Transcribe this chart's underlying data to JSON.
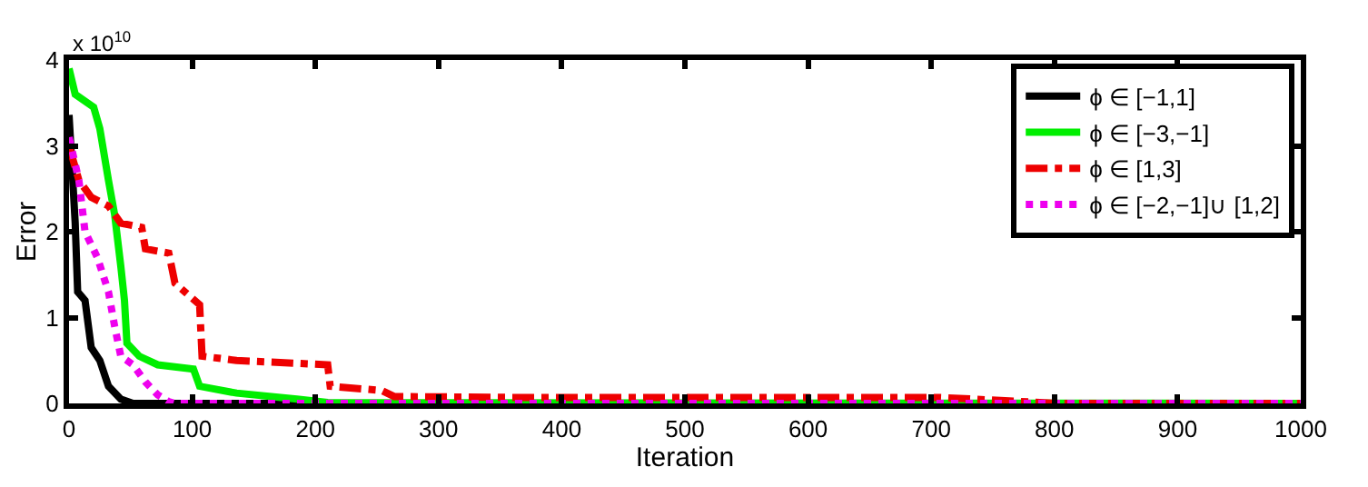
{
  "chart_data": {
    "type": "line",
    "xlabel": "Iteration",
    "ylabel": "Error",
    "annotations": [
      "x 10$^{10}$"
    ],
    "xlim": [
      0,
      1000
    ],
    "xticks": [
      0,
      100,
      200,
      300,
      400,
      500,
      600,
      700,
      800,
      900,
      1000
    ],
    "ylim": [
      0,
      4
    ],
    "yticks": [
      0,
      1,
      2,
      3,
      4
    ],
    "grid": false,
    "legend": "top right",
    "marker": "none",
    "series": [
      {
        "name": "ϕ ∈ [−1,1]",
        "color": "#000000",
        "line_style": "solid",
        "x": [
          0,
          5,
          7,
          13,
          18,
          25,
          32,
          42,
          52,
          1000
        ],
        "values": [
          3.36,
          2.1,
          1.3,
          1.2,
          0.65,
          0.5,
          0.2,
          0.05,
          0,
          0
        ]
      },
      {
        "name": "ϕ ∈ [−3,−1]",
        "color": "#00ee00",
        "line_style": "solid",
        "x": [
          0,
          5,
          20,
          25,
          32,
          37,
          42,
          45,
          47,
          57,
          72,
          101,
          106,
          136,
          185,
          210,
          1000
        ],
        "values": [
          3.9,
          3.6,
          3.45,
          3.2,
          2.6,
          2.2,
          1.6,
          1.2,
          0.7,
          0.55,
          0.45,
          0.4,
          0.2,
          0.12,
          0.05,
          0.01,
          0
        ]
      },
      {
        "name": "ϕ ∈ [1,3]",
        "color": "#ee0000",
        "line_style": "dashdot",
        "x": [
          0,
          8,
          18,
          32,
          42,
          59,
          62,
          81,
          86,
          106,
          108,
          136,
          210,
          212,
          254,
          264,
          357,
          706,
          804,
          1000
        ],
        "values": [
          3.0,
          2.6,
          2.4,
          2.3,
          2.1,
          2.05,
          1.8,
          1.75,
          1.4,
          1.15,
          0.55,
          0.5,
          0.45,
          0.2,
          0.15,
          0.08,
          0.07,
          0.07,
          0,
          0
        ]
      },
      {
        "name": "ϕ ∈ [−2,−1]∪ [1,2]",
        "color": "#ee00ee",
        "line_style": "dotted",
        "x": [
          0,
          8,
          13,
          23,
          32,
          37,
          42,
          52,
          62,
          72,
          81,
          86,
          1000
        ],
        "values": [
          3.1,
          2.6,
          2.0,
          1.7,
          1.3,
          0.9,
          0.55,
          0.45,
          0.25,
          0.1,
          0.02,
          0,
          0
        ]
      }
    ]
  }
}
